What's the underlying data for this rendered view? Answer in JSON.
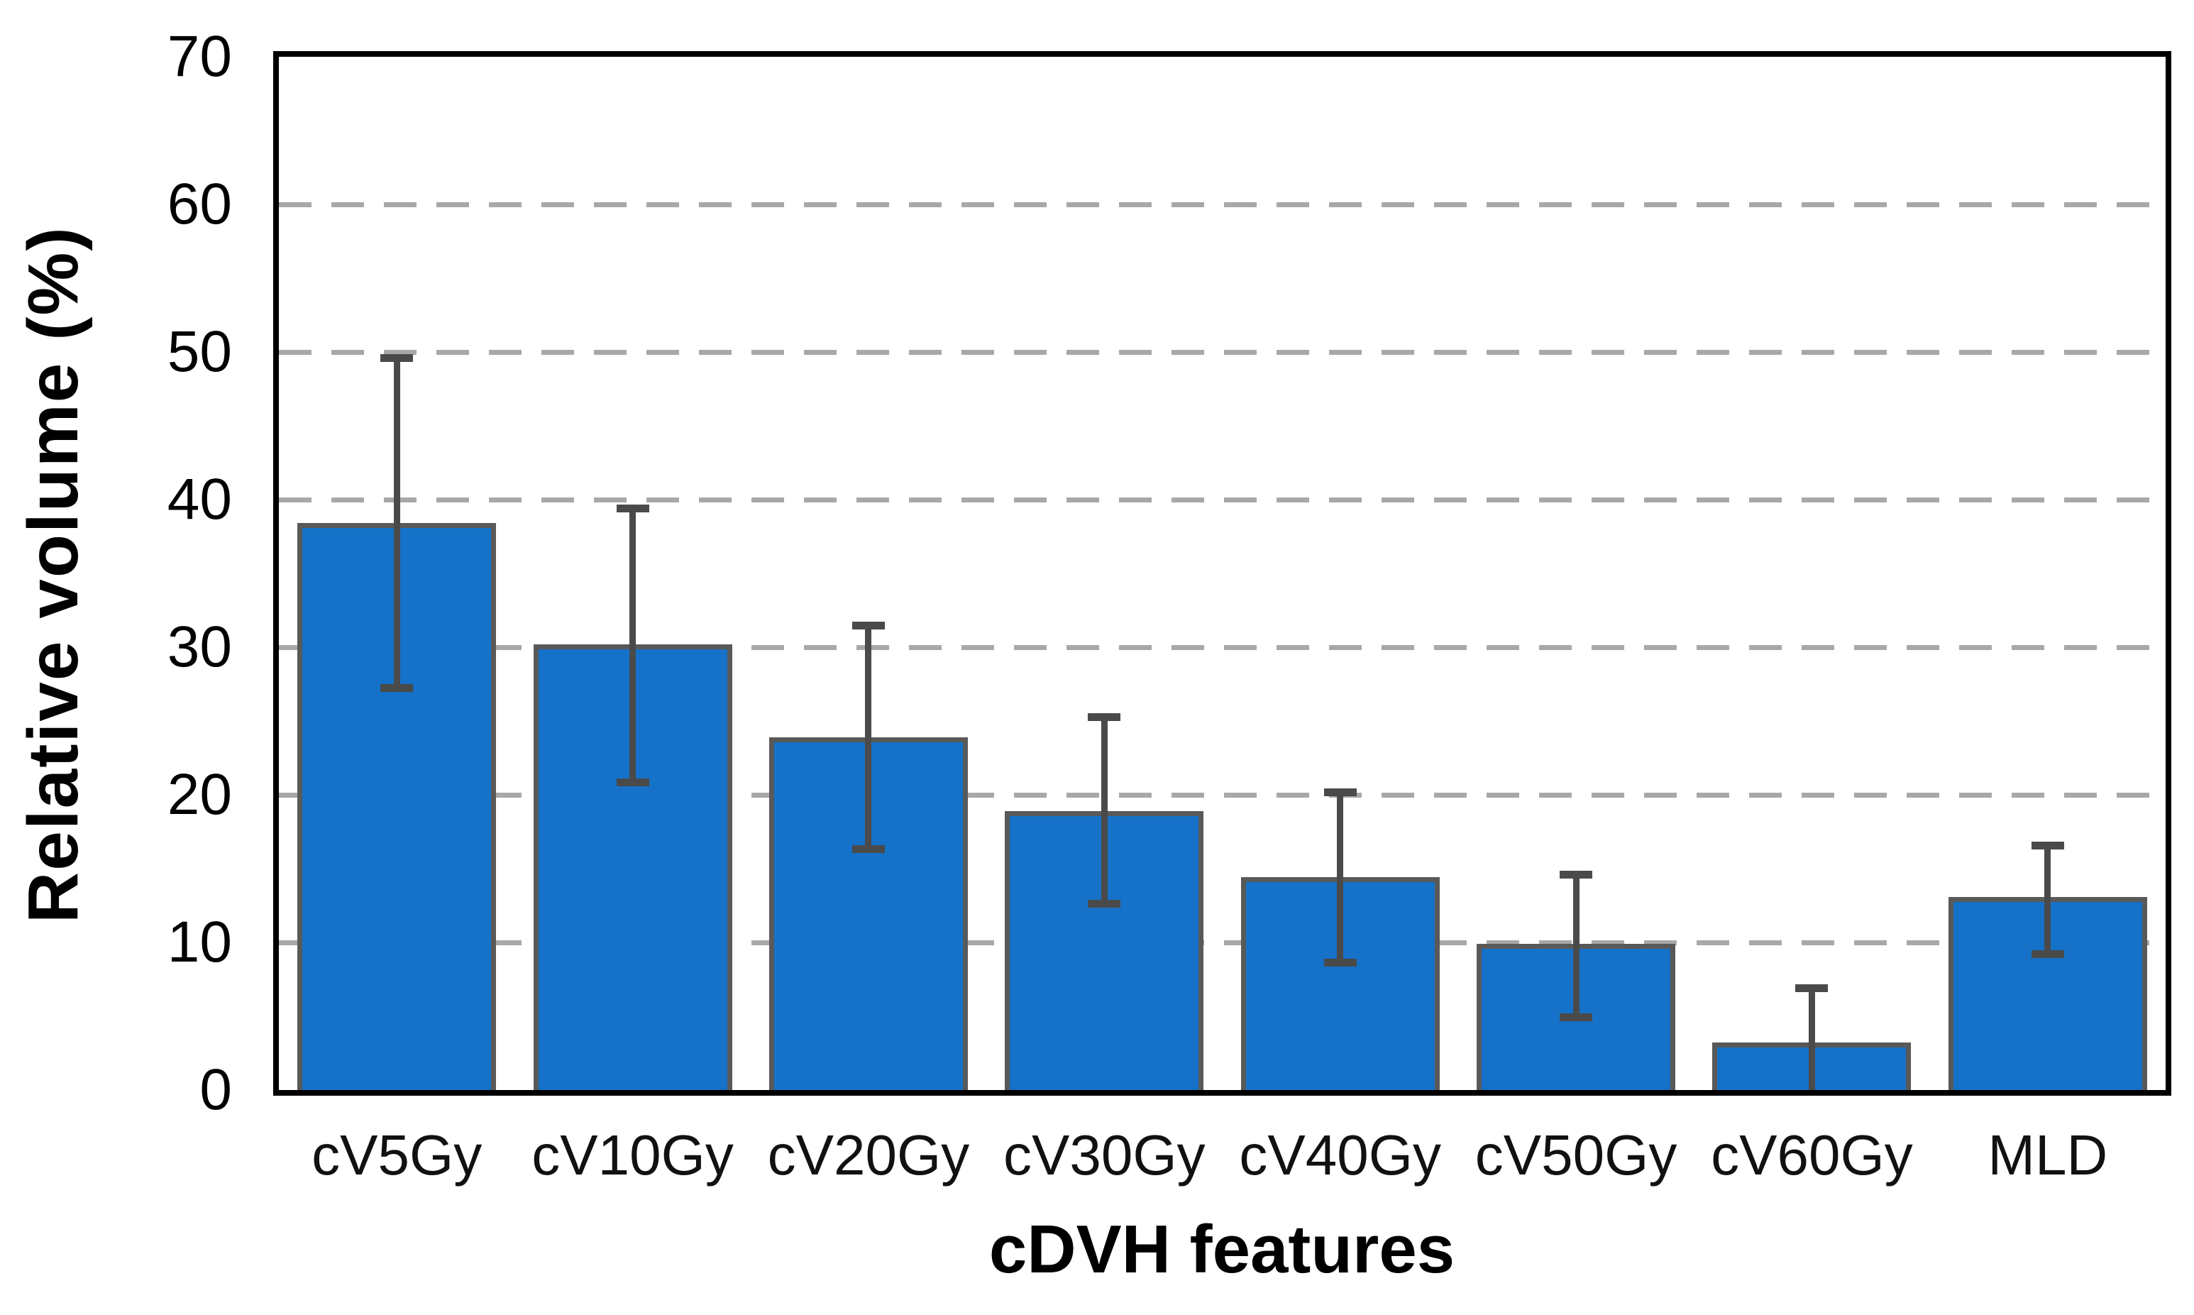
{
  "figure": {
    "background": "#FFFFFF"
  },
  "chart_data": {
    "type": "bar",
    "title": "",
    "xlabel": "cDVH features",
    "ylabel": "Relative volume (%)",
    "categories": [
      "cV5Gy",
      "cV10Gy",
      "cV20Gy",
      "cV30Gy",
      "cV40Gy",
      "cV50Gy",
      "cV60Gy",
      "MLD"
    ],
    "values": [
      38.4,
      30.2,
      23.9,
      18.9,
      14.4,
      9.9,
      3.2,
      13.1
    ],
    "error_bar_upper_ends": [
      49.6,
      39.4,
      31.5,
      25.3,
      20.2,
      14.6,
      6.9,
      16.6
    ],
    "error_bar_lower_ends": [
      27.2,
      20.8,
      16.3,
      12.6,
      8.6,
      4.9,
      0,
      9.2
    ],
    "ylim": [
      0,
      70
    ],
    "yticks": [
      0,
      10,
      20,
      30,
      40,
      50,
      60,
      70
    ],
    "gridline_values": [
      10,
      20,
      30,
      40,
      50,
      60
    ],
    "grid_style": "horizontal dashed",
    "legend": "none",
    "colors": {
      "bar_fill": "#1572C8",
      "bar_border": "#595959",
      "error_bar": "#4A4A4A",
      "gridline": "#A8A8A8",
      "axis_box": "#000000",
      "text": "#000000"
    }
  }
}
